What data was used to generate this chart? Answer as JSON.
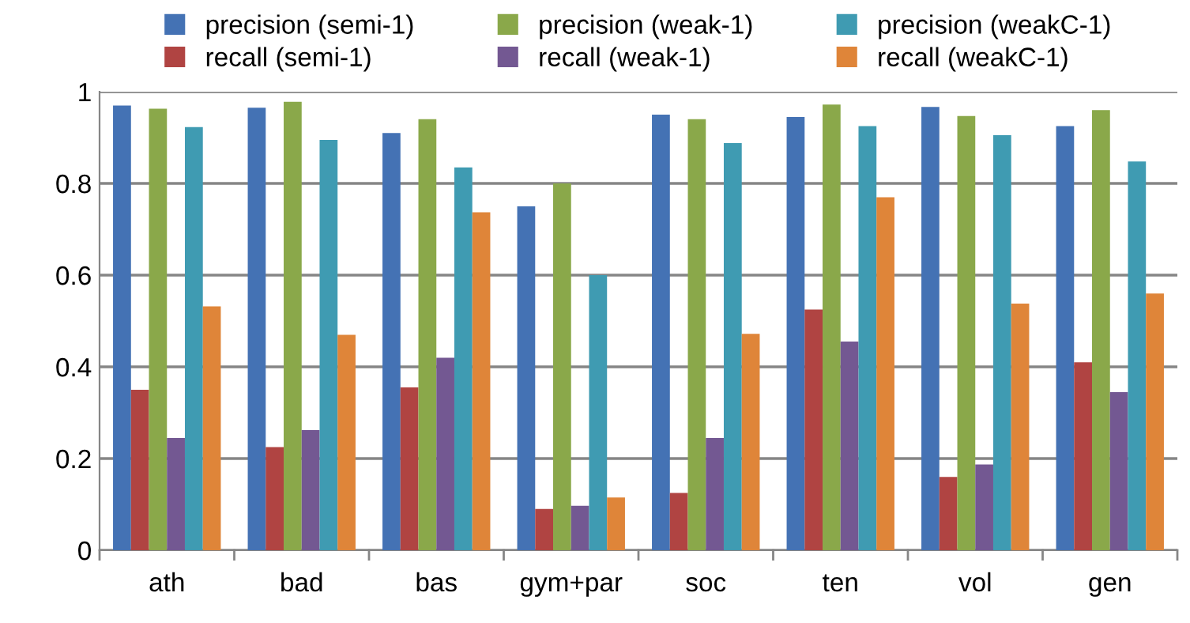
{
  "chart_data": {
    "type": "bar",
    "categories": [
      "ath",
      "bad",
      "bas",
      "gym+par",
      "soc",
      "ten",
      "vol",
      "gen"
    ],
    "series": [
      {
        "name": "precision (semi-1)",
        "color": "#4472b4",
        "values": [
          0.97,
          0.965,
          0.91,
          0.75,
          0.95,
          0.945,
          0.967,
          0.925
        ]
      },
      {
        "name": "recall (semi-1)",
        "color": "#b04442",
        "values": [
          0.35,
          0.225,
          0.355,
          0.09,
          0.125,
          0.525,
          0.16,
          0.41
        ]
      },
      {
        "name": "precision (weak-1)",
        "color": "#8aa84a",
        "values": [
          0.963,
          0.978,
          0.94,
          0.8,
          0.94,
          0.972,
          0.947,
          0.96
        ]
      },
      {
        "name": "recall (weak-1)",
        "color": "#735892",
        "values": [
          0.245,
          0.262,
          0.42,
          0.097,
          0.245,
          0.455,
          0.187,
          0.345
        ]
      },
      {
        "name": "precision (weakC-1)",
        "color": "#3f9bb2",
        "values": [
          0.923,
          0.895,
          0.835,
          0.6,
          0.888,
          0.925,
          0.905,
          0.848
        ]
      },
      {
        "name": "recall (weakC-1)",
        "color": "#df8539",
        "values": [
          0.532,
          0.47,
          0.737,
          0.115,
          0.472,
          0.77,
          0.538,
          0.56
        ]
      }
    ],
    "ylim": [
      0,
      1
    ],
    "yticks": [
      0,
      0.2,
      0.4,
      0.6,
      0.8,
      1
    ],
    "grid": "y",
    "legend": "top"
  }
}
